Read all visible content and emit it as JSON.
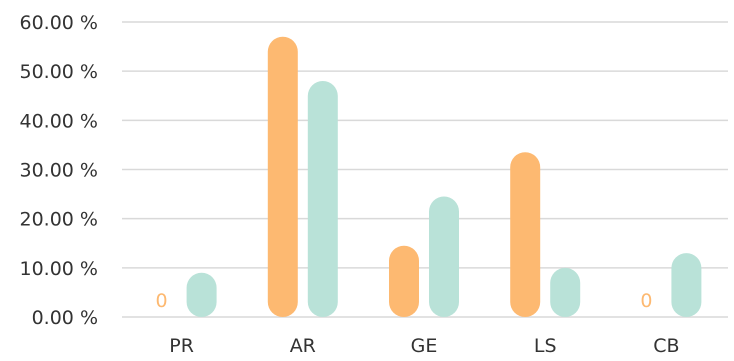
{
  "chart_data": {
    "type": "bar",
    "categories": [
      "PR",
      "AR",
      "GE",
      "LS",
      "CB"
    ],
    "series": [
      {
        "values": [
          0,
          57,
          14.5,
          33.5,
          0
        ],
        "color": "#fdb971"
      },
      {
        "values": [
          9,
          48,
          24.5,
          10,
          13
        ],
        "color": "#b9e2d8"
      }
    ],
    "zero_labels": [
      "0",
      null,
      null,
      null,
      "0"
    ],
    "yticks": [
      "0.00 %",
      "10.00 %",
      "20.00 %",
      "30.00 %",
      "40.00 %",
      "50.00 %",
      "60.00 %"
    ],
    "ylim": [
      0,
      60
    ],
    "grid": true,
    "title": "",
    "xlabel": "",
    "ylabel": ""
  }
}
